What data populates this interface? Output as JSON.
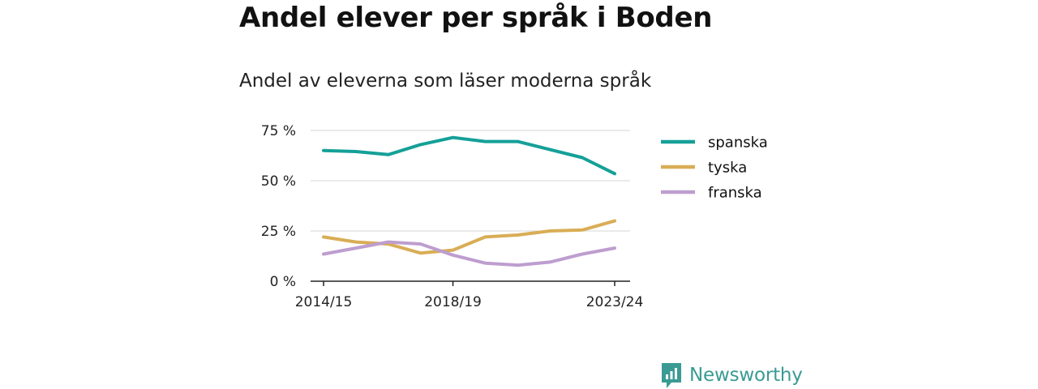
{
  "title": "Andel elever per språk i Boden",
  "subtitle": "Andel av eleverna som läser moderna språk",
  "brand": {
    "name": "Newsworthy",
    "color": "#3a9b94"
  },
  "chart_data": {
    "type": "line",
    "x_tick_labels": [
      "2014/15",
      "2018/19",
      "2023/24"
    ],
    "y_tick_labels": [
      "0 %",
      "25 %",
      "50 %",
      "75 %"
    ],
    "y_ticks": [
      0,
      25,
      50,
      75
    ],
    "ylim": [
      0,
      75
    ],
    "grid": true,
    "legend_position": "right",
    "x": [
      "2014/15",
      "2015/16",
      "2016/17",
      "2017/18",
      "2018/19",
      "2019/20",
      "2020/21",
      "2021/22",
      "2022/23",
      "2023/24"
    ],
    "series": [
      {
        "name": "spanska",
        "color": "#14a098",
        "values": [
          65,
          64.5,
          63,
          68,
          71.5,
          69.5,
          69.5,
          65.5,
          61.5,
          53.5
        ]
      },
      {
        "name": "tyska",
        "color": "#d9ad56",
        "values": [
          22,
          19.5,
          18.5,
          14,
          15.5,
          22,
          23,
          25,
          25.5,
          30
        ]
      },
      {
        "name": "franska",
        "color": "#bd9ecf",
        "values": [
          13.5,
          16.5,
          19.5,
          18.5,
          13,
          9,
          8,
          9.5,
          13.5,
          16.5
        ]
      }
    ]
  }
}
